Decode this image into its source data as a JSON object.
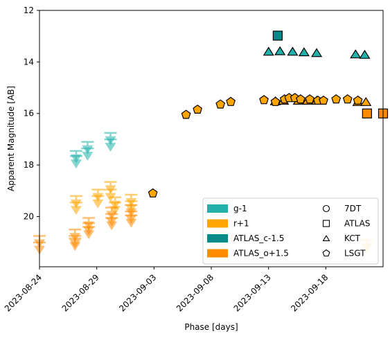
{
  "chart_data": {
    "type": "scatter",
    "xlabel": "Phase [days]",
    "ylabel": "Apparent Magnitude [AB]",
    "x_range": [
      "2023-08-24",
      "2023-09-23"
    ],
    "ylim": [
      21.95,
      12
    ],
    "y_inverted": true,
    "x_ticks": [
      "2023-08-24",
      "2023-08-29",
      "2023-09-03",
      "2023-09-08",
      "2023-09-13",
      "2023-09-18"
    ],
    "y_ticks": [
      12,
      14,
      16,
      18,
      20
    ],
    "grid": false,
    "legend": {
      "placement": "lower-right",
      "filter_entries": [
        {
          "label": "g-1",
          "color": "#20b2aa"
        },
        {
          "label": "r+1",
          "color": "#ffa500"
        },
        {
          "label": "ATLAS_c-1.5",
          "color": "#008b8b"
        },
        {
          "label": "ATLAS_o+1.5",
          "color": "#ff8c00"
        }
      ],
      "telescope_entries": [
        {
          "label": "7DT",
          "marker": "circle"
        },
        {
          "label": "ATLAS",
          "marker": "square"
        },
        {
          "label": "KCT",
          "marker": "triangle"
        },
        {
          "label": "LSGT",
          "marker": "pentagon"
        }
      ]
    },
    "series": [
      {
        "name": "g-1",
        "color": "#20b2aa",
        "kind": "upper_limit",
        "points": [
          {
            "x": "2023-08-27.2",
            "y": 17.75
          },
          {
            "x": "2023-08-27.2",
            "y": 17.95
          },
          {
            "x": "2023-08-28.2",
            "y": 17.4
          },
          {
            "x": "2023-08-28.2",
            "y": 17.65
          },
          {
            "x": "2023-08-30.2",
            "y": 17.05
          },
          {
            "x": "2023-08-30.2",
            "y": 17.3
          }
        ]
      },
      {
        "name": "r+1",
        "color": "#ffa500",
        "kind": "upper_limit",
        "points": [
          {
            "x": "2023-08-27.2",
            "y": 19.5
          },
          {
            "x": "2023-08-27.2",
            "y": 19.75
          },
          {
            "x": "2023-08-29.1",
            "y": 19.25
          },
          {
            "x": "2023-08-29.1",
            "y": 19.5
          },
          {
            "x": "2023-08-30.2",
            "y": 18.95
          },
          {
            "x": "2023-08-30.2",
            "y": 19.25
          },
          {
            "x": "2023-08-30.6",
            "y": 19.55
          },
          {
            "x": "2023-08-30.6",
            "y": 19.75
          },
          {
            "x": "2023-09-01.0",
            "y": 19.45
          },
          {
            "x": "2023-09-01.0",
            "y": 19.7
          },
          {
            "x": "2023-09-21.6",
            "y": 21.2
          }
        ]
      },
      {
        "name": "ATLAS_o+1.5",
        "color": "#ff8c00",
        "kind": "upper_limit",
        "points": [
          {
            "x": "2023-08-24.0",
            "y": 21.05
          },
          {
            "x": "2023-08-24.0",
            "y": 21.3
          },
          {
            "x": "2023-08-27.1",
            "y": 20.8
          },
          {
            "x": "2023-08-27.1",
            "y": 21.05
          },
          {
            "x": "2023-08-27.1",
            "y": 21.15
          },
          {
            "x": "2023-08-28.3",
            "y": 20.35
          },
          {
            "x": "2023-08-28.3",
            "y": 20.55
          },
          {
            "x": "2023-08-28.3",
            "y": 20.7
          },
          {
            "x": "2023-08-30.3",
            "y": 19.95
          },
          {
            "x": "2023-08-30.3",
            "y": 20.2
          },
          {
            "x": "2023-08-30.3",
            "y": 20.35
          },
          {
            "x": "2023-09-01.0",
            "y": 19.85
          },
          {
            "x": "2023-09-01.0",
            "y": 20.1
          },
          {
            "x": "2023-09-01.0",
            "y": 20.25
          }
        ]
      },
      {
        "name": "ATLAS_c-1.5",
        "color": "#008b8b",
        "kind": "detection",
        "marker": "square",
        "points": [
          {
            "x": "2023-09-13.8",
            "y": 12.98
          }
        ]
      },
      {
        "name": "g-1",
        "color": "#20b2aa",
        "kind": "detection",
        "marker": "triangle",
        "points": [
          {
            "x": "2023-09-13.0",
            "y": 13.6
          },
          {
            "x": "2023-09-14.0",
            "y": 13.58
          },
          {
            "x": "2023-09-15.1",
            "y": 13.6
          },
          {
            "x": "2023-09-16.1",
            "y": 13.62
          },
          {
            "x": "2023-09-17.2",
            "y": 13.65
          },
          {
            "x": "2023-09-20.6",
            "y": 13.7
          },
          {
            "x": "2023-09-21.4",
            "y": 13.72
          }
        ]
      },
      {
        "name": "r+1",
        "color": "#ffa500",
        "kind": "detection",
        "marker": "triangle",
        "points": [
          {
            "x": "2023-09-13.6",
            "y": 15.52
          },
          {
            "x": "2023-09-14.3",
            "y": 15.5
          },
          {
            "x": "2023-09-15.6",
            "y": 15.5
          },
          {
            "x": "2023-09-16.4",
            "y": 15.5
          },
          {
            "x": "2023-09-17.2",
            "y": 15.5
          },
          {
            "x": "2023-09-20.8",
            "y": 15.55
          },
          {
            "x": "2023-09-21.5",
            "y": 15.55
          }
        ]
      },
      {
        "name": "r+1",
        "color": "#ffa500",
        "kind": "detection",
        "marker": "pentagon",
        "points": [
          {
            "x": "2023-09-02.9",
            "y": 19.1
          },
          {
            "x": "2023-09-05.8",
            "y": 16.05
          },
          {
            "x": "2023-09-06.8",
            "y": 15.85
          },
          {
            "x": "2023-09-08.8",
            "y": 15.65
          },
          {
            "x": "2023-09-09.7",
            "y": 15.55
          },
          {
            "x": "2023-09-12.6",
            "y": 15.48
          },
          {
            "x": "2023-09-13.6",
            "y": 15.55
          },
          {
            "x": "2023-09-14.4",
            "y": 15.45
          },
          {
            "x": "2023-09-14.8",
            "y": 15.4
          },
          {
            "x": "2023-09-15.3",
            "y": 15.4
          },
          {
            "x": "2023-09-15.8",
            "y": 15.45
          },
          {
            "x": "2023-09-16.6",
            "y": 15.45
          },
          {
            "x": "2023-09-17.3",
            "y": 15.5
          },
          {
            "x": "2023-09-17.8",
            "y": 15.5
          },
          {
            "x": "2023-09-18.9",
            "y": 15.45
          },
          {
            "x": "2023-09-19.9",
            "y": 15.45
          },
          {
            "x": "2023-09-20.8",
            "y": 15.5
          }
        ]
      },
      {
        "name": "ATLAS_o+1.5",
        "color": "#ff8c00",
        "kind": "detection",
        "marker": "square",
        "points": [
          {
            "x": "2023-09-21.6",
            "y": 16.0
          },
          {
            "x": "2023-09-23.0",
            "y": 16.0
          }
        ]
      }
    ]
  }
}
